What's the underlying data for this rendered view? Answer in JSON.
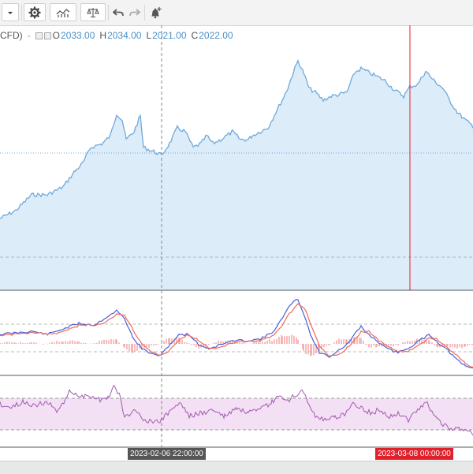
{
  "toolbar": {
    "dropdown_icon": "chevron-down-icon",
    "settings_icon": "gear-icon",
    "indicators_icon": "chart-indicators-icon",
    "compare_icon": "scales-icon",
    "undo_icon": "undo-icon",
    "redo_icon": "redo-icon",
    "alert_icon": "bell-plus-icon"
  },
  "legend": {
    "symbol_suffix": "CFD)",
    "dash": "-",
    "open_label": "O",
    "open": "2033.00",
    "high_label": "H",
    "high": "2034.00",
    "low_label": "L",
    "low": "2021.00",
    "close_label": "C",
    "close": "2022.00"
  },
  "crosshair": {
    "left_time": "2023-02-06 22:00:00",
    "right_time": "2023-03-08 00:00:00"
  },
  "colors": {
    "price_line": "#6fa8dc",
    "price_fill": "#dcedf9",
    "macd_line": "#4a5fd8",
    "signal_line": "#f06a5a",
    "histogram": "#f5a0a0",
    "rsi_line": "#a25ab2",
    "rsi_band": "#f3e0f4",
    "crosshair_red": "#e0202a",
    "label_dark": "#555555",
    "label_red": "#e0202a"
  }
}
